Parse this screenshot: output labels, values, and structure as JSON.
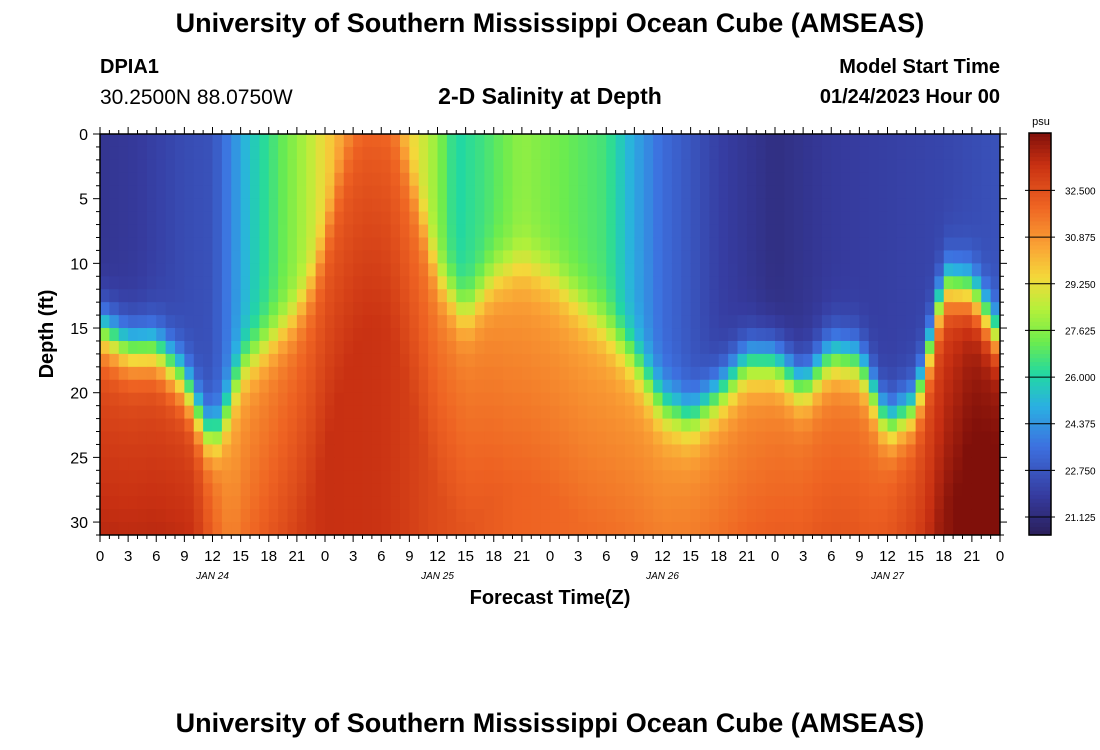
{
  "header": {
    "title": "University of Southern Mississippi Ocean Cube (AMSEAS)",
    "station": "DPIA1",
    "coords": "30.2500N  88.0750W",
    "subtitle": "2-D Salinity at Depth",
    "model_start_label": "Model Start Time",
    "model_start_value": "01/24/2023 Hour 00"
  },
  "footer": {
    "title": "University of Southern Mississippi Ocean Cube (AMSEAS)"
  },
  "chart_data": {
    "type": "heatmap",
    "title": "2-D Salinity at Depth",
    "xlabel": "Forecast Time(Z)",
    "ylabel": "Depth (ft)",
    "x_ticks": [
      "0",
      "3",
      "6",
      "9",
      "12",
      "15",
      "18",
      "21",
      "0",
      "3",
      "6",
      "9",
      "12",
      "15",
      "18",
      "21",
      "0",
      "3",
      "6",
      "9",
      "12",
      "15",
      "18",
      "21",
      "0",
      "3",
      "6",
      "9",
      "12",
      "15",
      "18",
      "21",
      "0"
    ],
    "date_labels": [
      {
        "label": "JAN 24",
        "hour": 12
      },
      {
        "label": "JAN 25",
        "hour": 36
      },
      {
        "label": "JAN 26",
        "hour": 60
      },
      {
        "label": "JAN 27",
        "hour": 84
      }
    ],
    "xlim_hours": [
      0,
      96
    ],
    "ylim_ft": [
      0,
      31
    ],
    "y_ticks": [
      0,
      5,
      10,
      15,
      20,
      25,
      30
    ],
    "colorbar": {
      "unit": "psu",
      "min": 20.5,
      "max": 34.5,
      "ticks": [
        "32.500",
        "30.875",
        "29.250",
        "27.625",
        "26.000",
        "24.375",
        "22.750",
        "21.125"
      ],
      "tick_values": [
        32.5,
        30.875,
        29.25,
        27.625,
        26.0,
        24.375,
        22.75,
        21.125
      ]
    },
    "surface_salinity_psu": [
      {
        "h": 0,
        "v": 21.6
      },
      {
        "h": 4,
        "v": 21.8
      },
      {
        "h": 9,
        "v": 22.4
      },
      {
        "h": 12,
        "v": 22.6
      },
      {
        "h": 16,
        "v": 25.5
      },
      {
        "h": 22,
        "v": 28.3
      },
      {
        "h": 26,
        "v": 30.6
      },
      {
        "h": 30,
        "v": 31.1
      },
      {
        "h": 35,
        "v": 28.5
      },
      {
        "h": 38,
        "v": 26.0
      },
      {
        "h": 41,
        "v": 26.6
      },
      {
        "h": 45,
        "v": 27.8
      },
      {
        "h": 48,
        "v": 27.4
      },
      {
        "h": 54,
        "v": 26.6
      },
      {
        "h": 57,
        "v": 24.8
      },
      {
        "h": 60,
        "v": 23.4
      },
      {
        "h": 66,
        "v": 22.0
      },
      {
        "h": 72,
        "v": 21.3
      },
      {
        "h": 78,
        "v": 21.8
      },
      {
        "h": 84,
        "v": 22.0
      },
      {
        "h": 90,
        "v": 22.2
      },
      {
        "h": 96,
        "v": 22.6
      }
    ],
    "bottom_salinity_psu": [
      {
        "h": 0,
        "v": 32.5
      },
      {
        "h": 6,
        "v": 32.6
      },
      {
        "h": 10,
        "v": 32.7
      },
      {
        "h": 14,
        "v": 30.5
      },
      {
        "h": 16,
        "v": 30.9
      },
      {
        "h": 24,
        "v": 32.2
      },
      {
        "h": 30,
        "v": 32.1
      },
      {
        "h": 36,
        "v": 31.4
      },
      {
        "h": 44,
        "v": 30.8
      },
      {
        "h": 52,
        "v": 30.6
      },
      {
        "h": 60,
        "v": 30.7
      },
      {
        "h": 68,
        "v": 31.0
      },
      {
        "h": 76,
        "v": 31.4
      },
      {
        "h": 82,
        "v": 31.4
      },
      {
        "h": 88,
        "v": 32.4
      },
      {
        "h": 93,
        "v": 33.8
      },
      {
        "h": 96,
        "v": 34.0
      }
    ],
    "halocline_depth_ft": [
      {
        "h": 0,
        "v": 15
      },
      {
        "h": 3,
        "v": 16.5
      },
      {
        "h": 6,
        "v": 16.5
      },
      {
        "h": 9,
        "v": 19
      },
      {
        "h": 11,
        "v": 22.5
      },
      {
        "h": 12,
        "v": 23.5
      },
      {
        "h": 13,
        "v": 22.5
      },
      {
        "h": 15,
        "v": 18
      },
      {
        "h": 18,
        "v": 16
      },
      {
        "h": 21,
        "v": 14
      },
      {
        "h": 23,
        "v": 11
      },
      {
        "h": 26,
        "v": 2
      },
      {
        "h": 28,
        "v": -2
      },
      {
        "h": 31,
        "v": -2
      },
      {
        "h": 33,
        "v": 3
      },
      {
        "h": 36,
        "v": 11
      },
      {
        "h": 38,
        "v": 13
      },
      {
        "h": 39,
        "v": 14
      },
      {
        "h": 42,
        "v": 11
      },
      {
        "h": 45,
        "v": 10
      },
      {
        "h": 48,
        "v": 11
      },
      {
        "h": 51,
        "v": 13
      },
      {
        "h": 54,
        "v": 15
      },
      {
        "h": 57,
        "v": 17.5
      },
      {
        "h": 60,
        "v": 21
      },
      {
        "h": 63,
        "v": 22
      },
      {
        "h": 66,
        "v": 20
      },
      {
        "h": 69,
        "v": 17.5
      },
      {
        "h": 72,
        "v": 17.5
      },
      {
        "h": 75,
        "v": 19.5
      },
      {
        "h": 78,
        "v": 17
      },
      {
        "h": 81,
        "v": 17.5
      },
      {
        "h": 84,
        "v": 22.5
      },
      {
        "h": 87,
        "v": 21
      },
      {
        "h": 89,
        "v": 15
      },
      {
        "h": 90,
        "v": 11.5
      },
      {
        "h": 93,
        "v": 12
      },
      {
        "h": 96,
        "v": 16
      }
    ]
  }
}
